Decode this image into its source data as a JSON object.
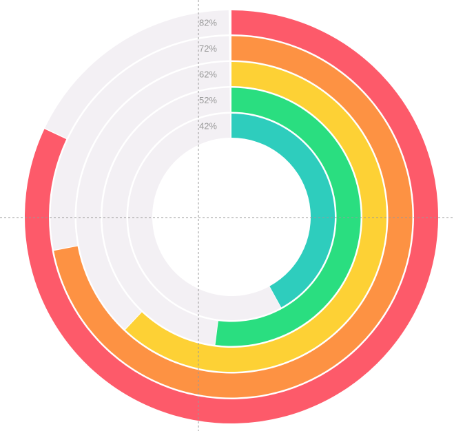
{
  "chart_data": {
    "type": "radial-bar",
    "title": "",
    "max": 100,
    "series": [
      {
        "name": "82%",
        "label": "82%",
        "value": 82,
        "color": "#fd5a6a"
      },
      {
        "name": "72%",
        "label": "72%",
        "value": 72,
        "color": "#fd9243"
      },
      {
        "name": "62%",
        "label": "62%",
        "value": 62,
        "color": "#fdd135"
      },
      {
        "name": "52%",
        "label": "52%",
        "value": 52,
        "color": "#2ade80"
      },
      {
        "name": "42%",
        "label": "42%",
        "value": 42,
        "color": "#2ecdbd"
      }
    ],
    "track_color": "#f3f0f4"
  }
}
